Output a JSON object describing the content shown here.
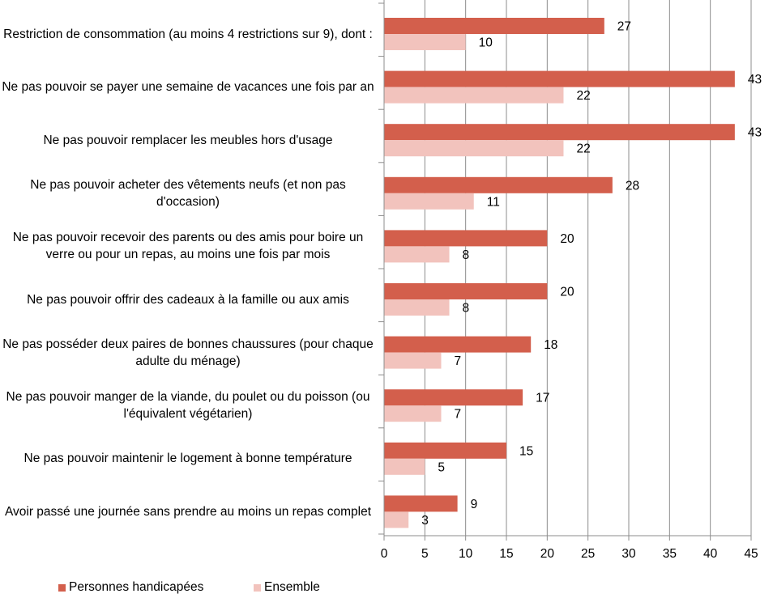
{
  "chart_data": {
    "type": "bar",
    "orientation": "horizontal",
    "categories": [
      "Restriction de consommation (au moins 4 restrictions sur 9), dont :",
      "Ne pas pouvoir se payer une semaine de vacances une fois par an",
      "Ne pas pouvoir remplacer les meubles hors d'usage",
      "Ne pas pouvoir acheter des vêtements neufs (et non pas d'occasion)",
      "Ne pas pouvoir recevoir des parents ou des amis pour boire un verre ou pour un repas, au moins une fois par mois",
      "Ne pas pouvoir offrir des cadeaux à la famille ou aux amis",
      "Ne pas posséder deux paires de bonnes chaussures (pour chaque adulte du ménage)",
      "Ne pas pouvoir manger de la viande, du poulet ou du poisson (ou l'équivalent végétarien)",
      "Ne pas pouvoir maintenir le logement à bonne température",
      "Avoir passé une journée sans prendre au moins un repas complet"
    ],
    "series": [
      {
        "name": "Personnes handicapées",
        "values": [
          27,
          43,
          43,
          28,
          20,
          20,
          18,
          17,
          15,
          9
        ],
        "color": "#d35f4c"
      },
      {
        "name": "Ensemble",
        "values": [
          10,
          22,
          22,
          11,
          8,
          8,
          7,
          7,
          5,
          3
        ],
        "color": "#f2c3bd"
      }
    ],
    "xlim": [
      0,
      45
    ],
    "xticks": [
      "0",
      "5",
      "10",
      "15",
      "20",
      "25",
      "30",
      "35",
      "40",
      "45"
    ],
    "grid": "vertical",
    "legend_position": "bottom-left"
  }
}
